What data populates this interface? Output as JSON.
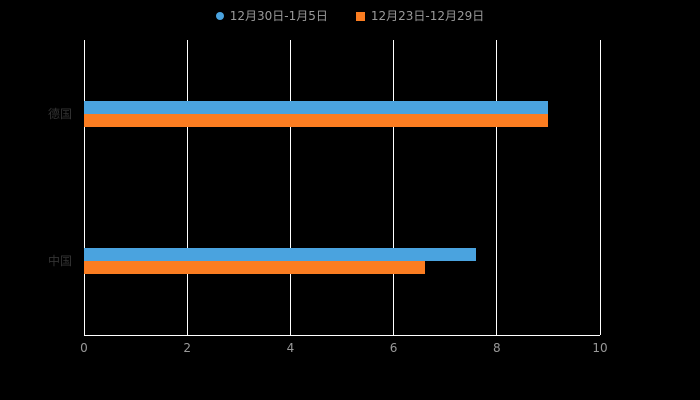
{
  "chart_data": {
    "type": "bar",
    "orientation": "horizontal",
    "title": "",
    "categories": [
      "德国",
      "中国"
    ],
    "series": [
      {
        "name": "12月30日-1月5日",
        "marker": "circle",
        "color": "#4AA3DF",
        "values": [
          9.0,
          7.6
        ]
      },
      {
        "name": "12月23日-12月29日",
        "marker": "square",
        "color": "#FB7D21",
        "values": [
          9.0,
          6.6
        ]
      }
    ],
    "xlim": [
      0,
      10
    ],
    "xticks": [
      0,
      2,
      4,
      6,
      8,
      10
    ],
    "grid": true,
    "legend_position": "top",
    "colors": {
      "background": "#000000",
      "axis_line": "#FFFFFF",
      "gridline": "#FFFFFF",
      "tick_label": "#999999",
      "category_label": "#333333",
      "legend_text": "#999999"
    }
  }
}
